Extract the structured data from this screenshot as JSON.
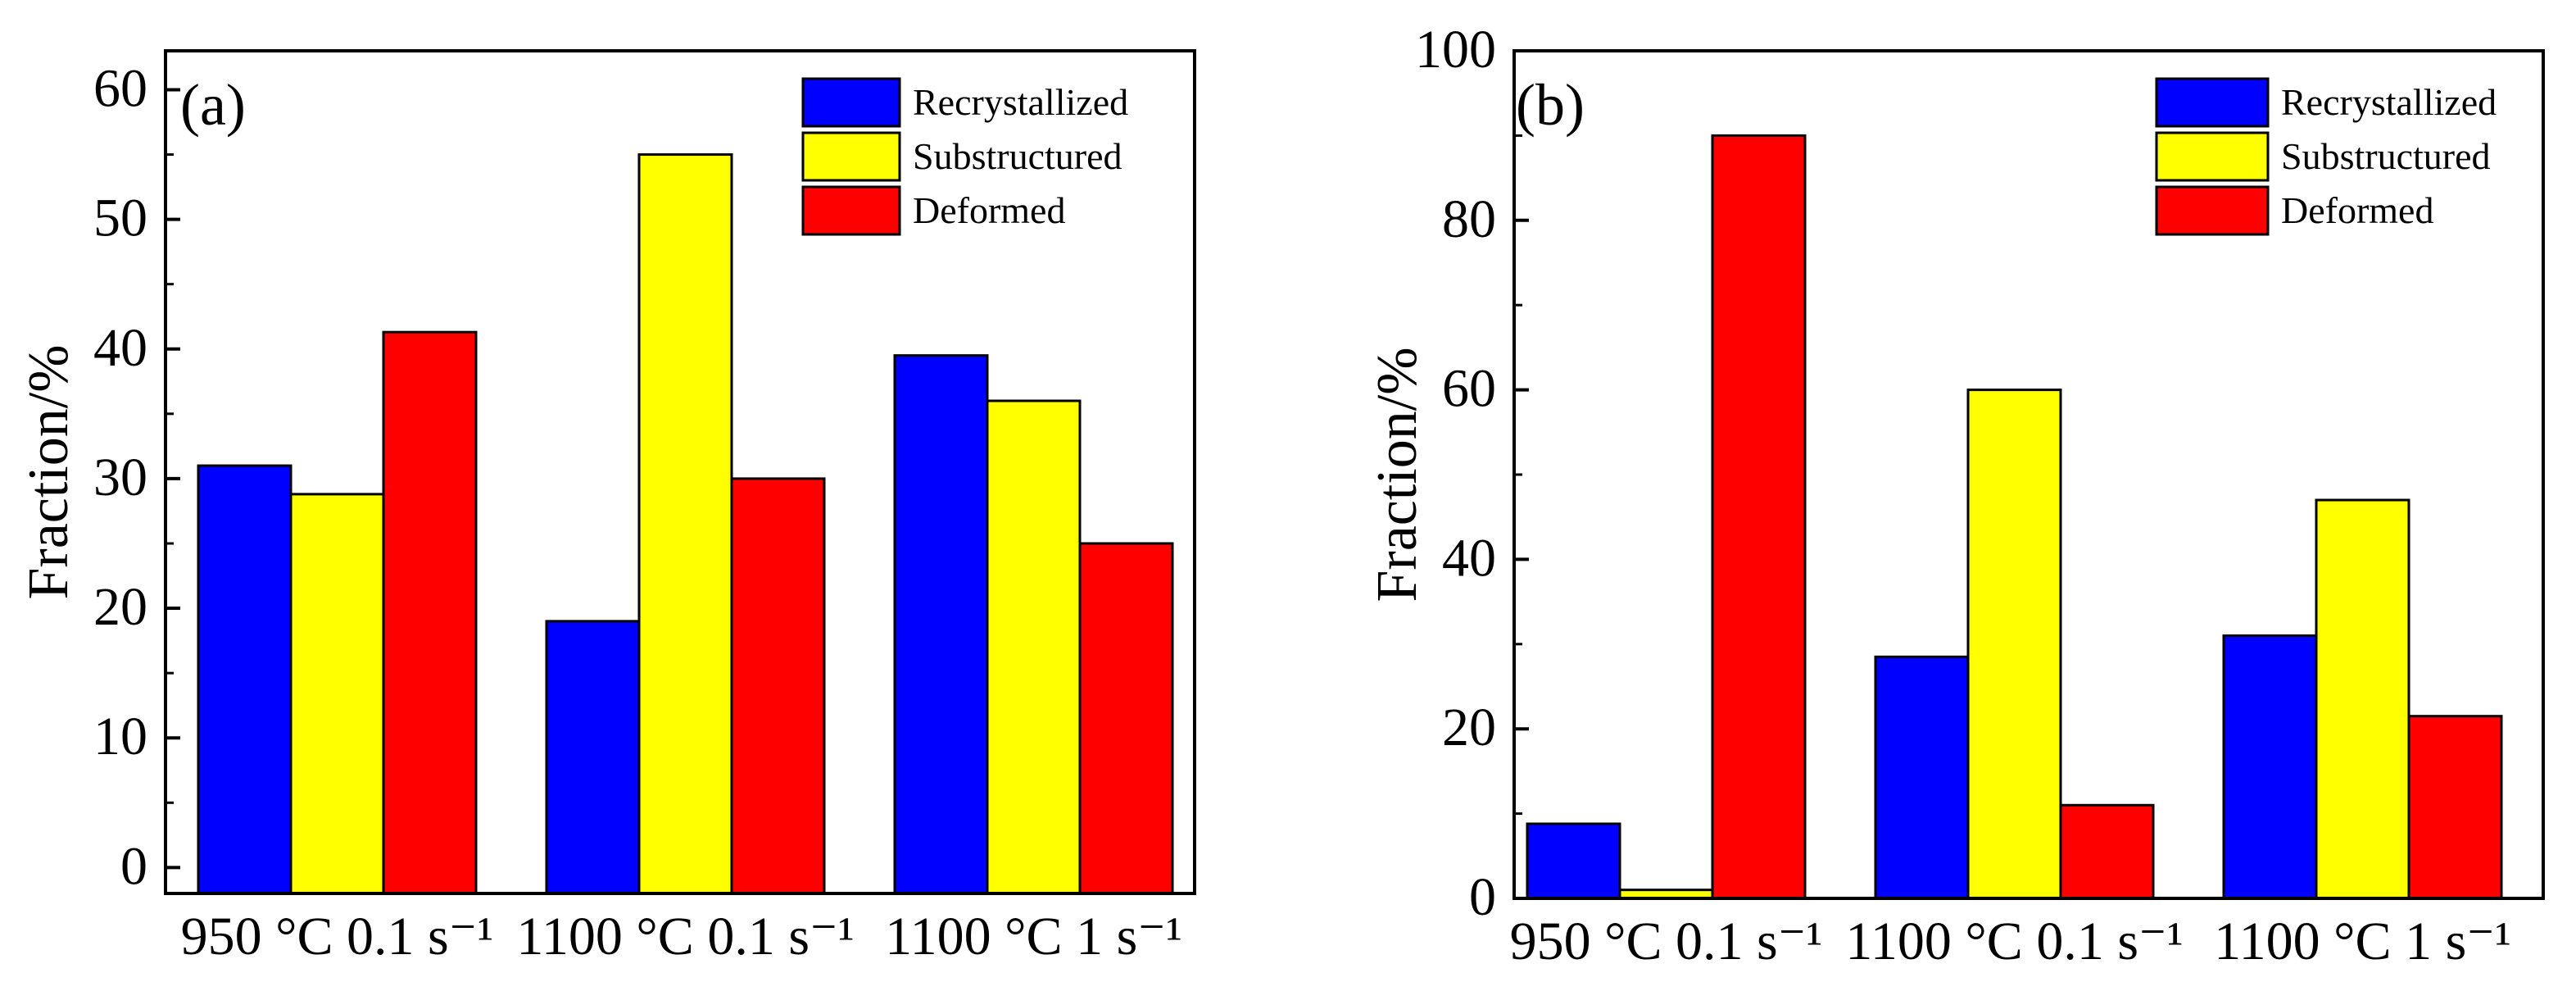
{
  "chart_data": [
    {
      "type": "bar",
      "panel": "(a)",
      "ylabel": "Fraction/%",
      "ylim": [
        -2,
        63
      ],
      "yticks": [
        0,
        10,
        20,
        30,
        40,
        50,
        60
      ],
      "categories": [
        "950 °C 0.1 s⁻¹",
        "1100 °C 0.1 s⁻¹",
        "1100 °C 1 s⁻¹"
      ],
      "legend_position": "top-right",
      "series": [
        {
          "name": "Recrystallized",
          "color": "#0000ff",
          "values": [
            31,
            19,
            39.5
          ]
        },
        {
          "name": "Substructured",
          "color": "#ffff00",
          "values": [
            28.8,
            55,
            36
          ]
        },
        {
          "name": "Deformed",
          "color": "#ff0000",
          "values": [
            41.3,
            30,
            25
          ]
        }
      ]
    },
    {
      "type": "bar",
      "panel": "(b)",
      "ylabel": "Fraction/%",
      "ylim": [
        0,
        100
      ],
      "yticks": [
        0,
        20,
        40,
        60,
        80,
        100
      ],
      "categories": [
        "950 °C 0.1 s⁻¹",
        "1100 °C 0.1 s⁻¹",
        "1100 °C 1 s⁻¹"
      ],
      "legend_position": "top-right",
      "series": [
        {
          "name": "Recrystallized",
          "color": "#0000ff",
          "values": [
            8.8,
            28.5,
            31
          ]
        },
        {
          "name": "Substructured",
          "color": "#ffff00",
          "values": [
            1,
            60,
            47
          ]
        },
        {
          "name": "Deformed",
          "color": "#ff0000",
          "values": [
            90,
            11,
            21.5
          ]
        }
      ]
    }
  ]
}
